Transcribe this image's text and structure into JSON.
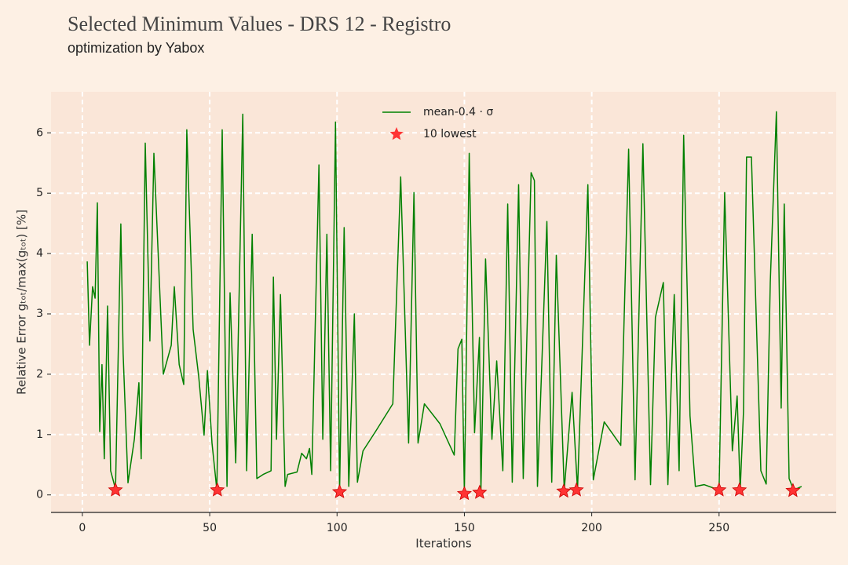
{
  "chart_data": {
    "type": "line",
    "title": "Selected Minimum Values - DRS 12 - Registro",
    "subtitle": "optimization by Yabox",
    "x_label": "Iterations",
    "y_label": "Relative Error gₜₒₜ/max(gₜₒₜ) [%]",
    "xlim": [
      -12.3,
      296
    ],
    "ylim": [
      -0.29,
      6.68
    ],
    "xticks": [
      0,
      50,
      100,
      150,
      200,
      250
    ],
    "yticks": [
      0,
      1,
      2,
      3,
      4,
      5,
      6
    ],
    "grid": true,
    "legend": "upper center",
    "series": [
      {
        "name": "mean-0.4 · σ",
        "color": "#008000",
        "type": "line",
        "x": [
          1.9,
          2.8,
          4,
          5,
          5.9,
          6.8,
          7.7,
          8.6,
          9.9,
          11.1,
          13,
          15.1,
          16,
          17.9,
          20.4,
          22.2,
          23.1,
          24.7,
          26.5,
          28.1,
          31.8,
          34.9,
          36.1,
          38,
          39.8,
          41,
          43.5,
          45.7,
          47.8,
          49.1,
          50.9,
          52.8,
          54.9,
          56.8,
          58,
          60.2,
          63,
          64.5,
          66.7,
          68.5,
          71,
          74.1,
          75,
          76.2,
          77.8,
          79.6,
          80.6,
          84.3,
          86.1,
          88,
          89.2,
          90.1,
          92.9,
          94.4,
          96,
          97.5,
          99.4,
          101,
          102.8,
          104.6,
          106.8,
          108,
          110.2,
          115.1,
          121.9,
          125,
          128.1,
          130.2,
          131.8,
          134.3,
          140.4,
          146,
          147.5,
          149,
          150,
          151.9,
          154,
          155.9,
          156.5,
          158.3,
          160.8,
          162.7,
          165.1,
          167,
          168.8,
          171.3,
          173.1,
          176.2,
          177.5,
          178.7,
          182.4,
          184.3,
          186.1,
          189.2,
          192.3,
          194.4,
          198.5,
          200.6,
          204.9,
          211.4,
          214.5,
          217,
          220.1,
          223.1,
          225,
          228.1,
          229.9,
          232.4,
          234.3,
          236.1,
          238.6,
          240.7,
          244.1,
          250,
          252.2,
          255.2,
          257.1,
          258.3,
          259.6,
          260.8,
          262.7,
          266.4,
          268.5,
          270.1,
          272.5,
          274.4,
          275.6,
          277.5,
          279.3,
          282.4
        ],
        "values": [
          3.87,
          2.48,
          3.45,
          3.26,
          4.84,
          1.05,
          2.16,
          0.6,
          3.13,
          0.4,
          0.1,
          4.49,
          2.35,
          0.2,
          0.92,
          1.86,
          0.6,
          5.83,
          2.55,
          5.66,
          2.0,
          2.48,
          3.45,
          2.16,
          1.83,
          6.05,
          2.74,
          1.96,
          0.99,
          2.06,
          0.86,
          0.08,
          6.05,
          0.14,
          3.35,
          0.53,
          6.31,
          0.4,
          4.32,
          0.27,
          0.34,
          0.4,
          3.61,
          0.92,
          3.32,
          0.14,
          0.34,
          0.38,
          0.69,
          0.6,
          0.77,
          0.34,
          5.47,
          0.92,
          4.32,
          0.4,
          6.18,
          0.08,
          4.43,
          0.14,
          3.0,
          0.21,
          0.73,
          1.05,
          1.51,
          5.27,
          0.86,
          5.01,
          0.86,
          1.51,
          1.18,
          0.66,
          2.42,
          2.58,
          0.04,
          5.66,
          1.03,
          2.61,
          0.08,
          3.91,
          0.92,
          2.22,
          0.4,
          4.82,
          0.21,
          5.14,
          0.27,
          5.34,
          5.21,
          0.14,
          4.53,
          0.21,
          3.97,
          0.08,
          1.7,
          0.08,
          5.14,
          0.25,
          1.21,
          0.82,
          5.73,
          0.25,
          5.82,
          0.17,
          2.94,
          3.52,
          0.17,
          3.32,
          0.4,
          5.96,
          1.31,
          0.14,
          0.17,
          0.08,
          5.01,
          0.73,
          1.64,
          0.08,
          1.38,
          5.6,
          5.6,
          0.4,
          0.18,
          3.52,
          6.35,
          1.44,
          4.82,
          0.27,
          0.08,
          0.14
        ]
      },
      {
        "name": "10 lowest",
        "color": "#ff3333",
        "type": "scatter",
        "x": [
          13,
          53,
          101,
          150,
          156,
          189,
          194,
          250,
          258,
          279
        ],
        "values": [
          0.08,
          0.08,
          0.05,
          0.02,
          0.04,
          0.06,
          0.08,
          0.08,
          0.08,
          0.07
        ]
      }
    ]
  }
}
